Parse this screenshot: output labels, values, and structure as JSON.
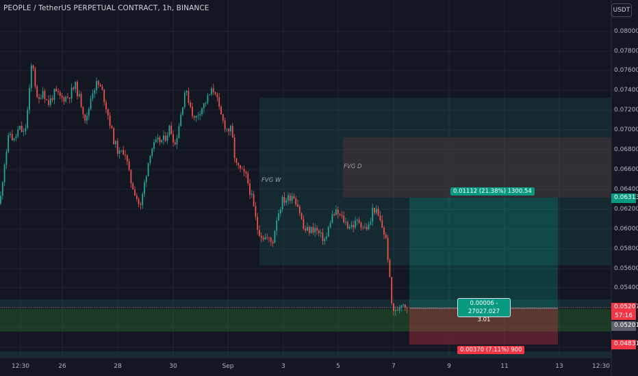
{
  "header": {
    "title": "PEOPLE / TetherUS PERPETUAL CONTRACT, 1h, BINANCE",
    "currency": "USDT"
  },
  "price_axis": {
    "labels": [
      "0.08000",
      "0.07800",
      "0.07600",
      "0.07400",
      "0.07200",
      "0.07000",
      "0.06800",
      "0.06600",
      "0.06400",
      "0.06200",
      "0.06000",
      "0.05800",
      "0.05600",
      "0.05400",
      "0.05200",
      "0.05000",
      "0.04800"
    ],
    "tags": {
      "target": "0.06313",
      "current": "0.05207",
      "countdown": "57:16",
      "entry": "0.05201",
      "stop": "0.04831"
    }
  },
  "time_axis": {
    "labels": [
      "12:30",
      "26",
      "28",
      "30",
      "Sep",
      "3",
      "5",
      "7",
      "9",
      "11",
      "13",
      "12:30"
    ]
  },
  "annotations": {
    "fvg_w": "FVG W",
    "fvg_d": "FVG D",
    "profit_label": "0.01112 (21.38%) 1300.54",
    "entry_line1": "0.00006 - 27027.027",
    "entry_line2": "3.01",
    "loss_label": "0.00370 (7.11%) 900"
  },
  "colors": {
    "background": "#131722",
    "up": "#26a69a",
    "down": "#ef5350"
  },
  "chart_data": {
    "type": "candlestick",
    "title": "PEOPLE / TetherUS PERPETUAL CONTRACT, 1h, BINANCE",
    "ylim": [
      0.0475,
      0.081
    ],
    "price_path": [
      [
        0,
        0.0625
      ],
      [
        6,
        0.0665
      ],
      [
        14,
        0.0698
      ],
      [
        20,
        0.0688
      ],
      [
        28,
        0.0702
      ],
      [
        36,
        0.0695
      ],
      [
        42,
        0.073
      ],
      [
        47,
        0.0775
      ],
      [
        50,
        0.0755
      ],
      [
        55,
        0.0725
      ],
      [
        62,
        0.0742
      ],
      [
        70,
        0.0726
      ],
      [
        80,
        0.0738
      ],
      [
        90,
        0.0732
      ],
      [
        100,
        0.0734
      ],
      [
        110,
        0.0745
      ],
      [
        118,
        0.0728
      ],
      [
        126,
        0.0708
      ],
      [
        134,
        0.0738
      ],
      [
        142,
        0.0748
      ],
      [
        150,
        0.0738
      ],
      [
        158,
        0.0715
      ],
      [
        166,
        0.069
      ],
      [
        174,
        0.0675
      ],
      [
        182,
        0.068
      ],
      [
        190,
        0.065
      ],
      [
        198,
        0.0635
      ],
      [
        205,
        0.062
      ],
      [
        212,
        0.065
      ],
      [
        220,
        0.068
      ],
      [
        230,
        0.0688
      ],
      [
        240,
        0.069
      ],
      [
        248,
        0.0703
      ],
      [
        256,
        0.0685
      ],
      [
        264,
        0.0715
      ],
      [
        270,
        0.074
      ],
      [
        276,
        0.073
      ],
      [
        284,
        0.071
      ],
      [
        292,
        0.072
      ],
      [
        300,
        0.0728
      ],
      [
        308,
        0.0738
      ],
      [
        314,
        0.0742
      ],
      [
        320,
        0.072
      ],
      [
        326,
        0.0708
      ],
      [
        332,
        0.07
      ],
      [
        338,
        0.07
      ],
      [
        344,
        0.0665
      ],
      [
        352,
        0.0658
      ],
      [
        360,
        0.0652
      ],
      [
        368,
        0.063
      ],
      [
        376,
        0.06
      ],
      [
        383,
        0.0592
      ],
      [
        390,
        0.059
      ],
      [
        398,
        0.0585
      ],
      [
        404,
        0.061
      ],
      [
        412,
        0.0628
      ],
      [
        420,
        0.063
      ],
      [
        428,
        0.0635
      ],
      [
        436,
        0.0622
      ],
      [
        444,
        0.0598
      ],
      [
        452,
        0.0598
      ],
      [
        460,
        0.06
      ],
      [
        468,
        0.0592
      ],
      [
        476,
        0.0588
      ],
      [
        484,
        0.0612
      ],
      [
        492,
        0.0616
      ],
      [
        500,
        0.061
      ],
      [
        508,
        0.0603
      ],
      [
        516,
        0.0603
      ],
      [
        524,
        0.0608
      ],
      [
        532,
        0.06
      ],
      [
        540,
        0.0602
      ],
      [
        545,
        0.0622
      ],
      [
        552,
        0.0613
      ],
      [
        560,
        0.0598
      ],
      [
        565,
        0.0585
      ],
      [
        569,
        0.055
      ],
      [
        572,
        0.0524
      ],
      [
        577,
        0.0513
      ],
      [
        582,
        0.052
      ],
      [
        587,
        0.0526
      ],
      [
        592,
        0.0522
      ],
      [
        597,
        0.052
      ]
    ],
    "fvg_zones": [
      {
        "label": "FVG W",
        "from": 0.0563,
        "to": 0.0732
      },
      {
        "label": "FVG D",
        "from": 0.0632,
        "to": 0.0692
      }
    ],
    "position": {
      "target": 0.06313,
      "entry": 0.05201,
      "stop": 0.04831
    },
    "support_zone": {
      "from": 0.0509,
      "to": 0.0523
    }
  }
}
